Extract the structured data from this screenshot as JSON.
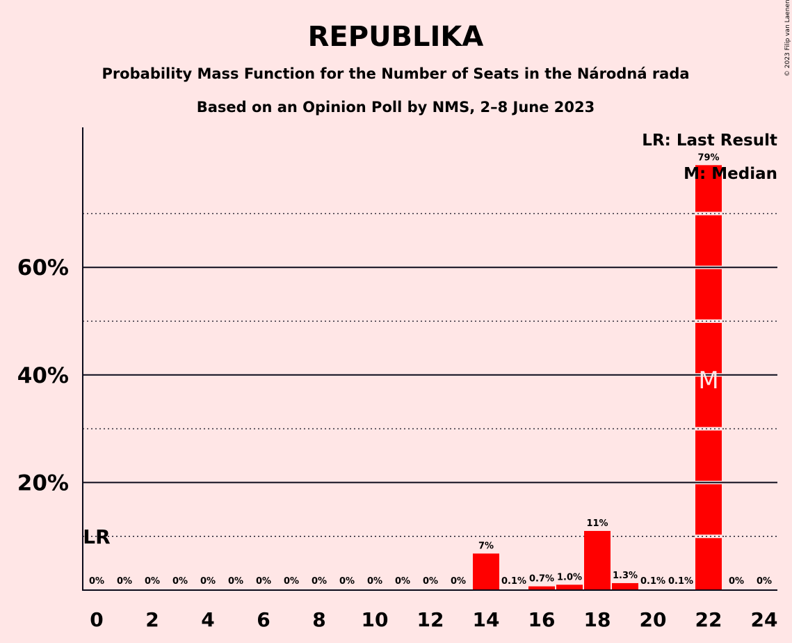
{
  "chart_data": {
    "type": "bar",
    "title": "REPUBLIKA",
    "subtitle_line1": "Probability Mass Function for the Number of Seats in the Národná rada",
    "subtitle_line2": "Based on an Opinion Poll by NMS, 2–8 June 2023",
    "copyright": "© 2023 Filip van Laenen",
    "x": [
      0,
      1,
      2,
      3,
      4,
      5,
      6,
      7,
      8,
      9,
      10,
      11,
      12,
      13,
      14,
      15,
      16,
      17,
      18,
      19,
      20,
      21,
      22,
      23,
      24
    ],
    "values": [
      0,
      0,
      0,
      0,
      0,
      0,
      0,
      0,
      0,
      0,
      0,
      0,
      0,
      0,
      6.8,
      0.1,
      0.7,
      1.0,
      11,
      1.3,
      0.1,
      0.1,
      79,
      0,
      0
    ],
    "bar_labels": [
      "0%",
      "0%",
      "0%",
      "0%",
      "0%",
      "0%",
      "0%",
      "0%",
      "0%",
      "0%",
      "0%",
      "0%",
      "0%",
      "0%",
      "7%",
      "0.1%",
      "0.7%",
      "1.0%",
      "11%",
      "1.3%",
      "0.1%",
      "0.1%",
      "79%",
      "0%",
      "0%"
    ],
    "x_tick_labels": [
      "0",
      "2",
      "4",
      "6",
      "8",
      "10",
      "12",
      "14",
      "16",
      "18",
      "20",
      "22",
      "24"
    ],
    "y_tick_labels": [
      "20%",
      "40%",
      "60%"
    ],
    "ylim": [
      0,
      80
    ],
    "grid": "solid major lines at 20% steps, dotted minor lines at 10% steps",
    "last_result_seat": 0,
    "median_seat": 22,
    "legend": [
      "LR: Last Result",
      "M: Median"
    ],
    "legend_position": "top-right",
    "lr_marker": "LR",
    "median_marker": "M",
    "bar_color": "#ff0000",
    "background_color": "#ffe6e6"
  }
}
